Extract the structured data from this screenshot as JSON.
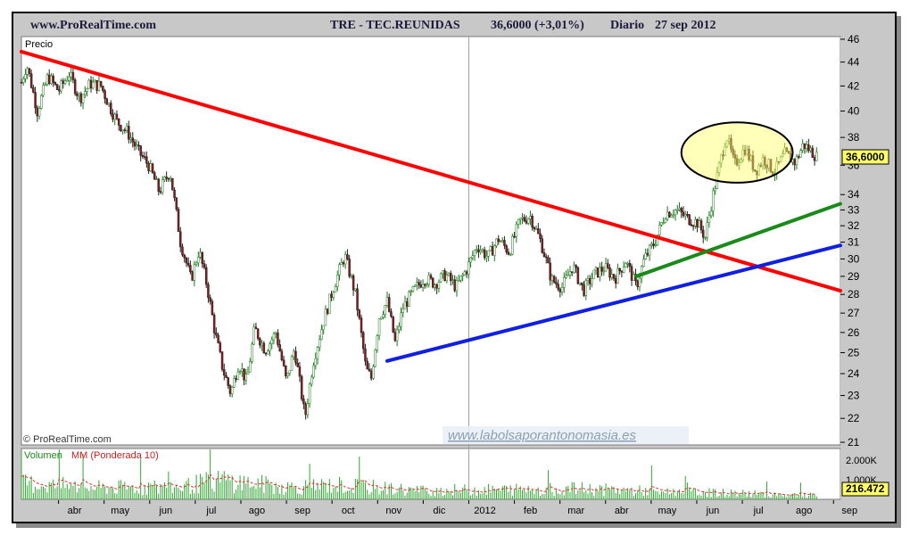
{
  "header": {
    "site": "www.ProRealTime.com",
    "ticker": "TRE - TEC.REUNIDAS",
    "price": "36,6000 (+3,01%)",
    "period": "Diario",
    "date": "27 sep 2012"
  },
  "chart_data": [
    {
      "type": "candlestick",
      "title": "Precio",
      "watermark": "www.labolsaporantonomasia.es",
      "credit": "© ProRealTime.com",
      "ylim": [
        21,
        46
      ],
      "y_ticks": [
        21,
        22,
        23,
        24,
        25,
        26,
        27,
        28,
        29,
        30,
        31,
        32,
        33,
        34,
        36,
        38,
        40,
        42,
        44,
        46
      ],
      "x_labels": [
        "abr",
        "may",
        "jun",
        "jul",
        "ago",
        "sep",
        "oct",
        "nov",
        "dic",
        "2012",
        "feb",
        "mar",
        "abr",
        "may",
        "jun",
        "jul",
        "ago",
        "sep"
      ],
      "last_price_label": "36,6000",
      "price_path": [
        {
          "t": 0,
          "v": 42.3
        },
        {
          "t": 4,
          "v": 43.8
        },
        {
          "t": 12,
          "v": 40.0
        },
        {
          "t": 20,
          "v": 42.8
        },
        {
          "t": 28,
          "v": 41.6
        },
        {
          "t": 36,
          "v": 43.0
        },
        {
          "t": 44,
          "v": 41.0
        },
        {
          "t": 52,
          "v": 42.2
        },
        {
          "t": 60,
          "v": 42.0
        },
        {
          "t": 66,
          "v": 40.5
        },
        {
          "t": 72,
          "v": 39.2
        },
        {
          "t": 80,
          "v": 38.4
        },
        {
          "t": 88,
          "v": 37.0
        },
        {
          "t": 96,
          "v": 36.0
        },
        {
          "t": 104,
          "v": 34.2
        },
        {
          "t": 112,
          "v": 35.6
        },
        {
          "t": 120,
          "v": 31.0
        },
        {
          "t": 128,
          "v": 28.8
        },
        {
          "t": 134,
          "v": 30.5
        },
        {
          "t": 140,
          "v": 28.5
        },
        {
          "t": 146,
          "v": 26.0
        },
        {
          "t": 152,
          "v": 24.2
        },
        {
          "t": 158,
          "v": 23.1
        },
        {
          "t": 164,
          "v": 24.5
        },
        {
          "t": 170,
          "v": 23.6
        },
        {
          "t": 176,
          "v": 26.2
        },
        {
          "t": 184,
          "v": 25.1
        },
        {
          "t": 192,
          "v": 26.0
        },
        {
          "t": 200,
          "v": 23.6
        },
        {
          "t": 206,
          "v": 25.2
        },
        {
          "t": 214,
          "v": 22.0
        },
        {
          "t": 220,
          "v": 24.5
        },
        {
          "t": 228,
          "v": 26.6
        },
        {
          "t": 236,
          "v": 28.5
        },
        {
          "t": 244,
          "v": 30.2
        },
        {
          "t": 252,
          "v": 28.0
        },
        {
          "t": 260,
          "v": 24.2
        },
        {
          "t": 264,
          "v": 23.8
        },
        {
          "t": 270,
          "v": 26.8
        },
        {
          "t": 276,
          "v": 27.6
        },
        {
          "t": 282,
          "v": 25.5
        },
        {
          "t": 288,
          "v": 27.3
        },
        {
          "t": 296,
          "v": 28.2
        },
        {
          "t": 304,
          "v": 28.9
        },
        {
          "t": 312,
          "v": 28.6
        },
        {
          "t": 320,
          "v": 29.1
        },
        {
          "t": 328,
          "v": 28.4
        },
        {
          "t": 336,
          "v": 29.4
        },
        {
          "t": 344,
          "v": 30.8
        },
        {
          "t": 352,
          "v": 30.1
        },
        {
          "t": 360,
          "v": 31.2
        },
        {
          "t": 368,
          "v": 30.4
        },
        {
          "t": 376,
          "v": 32.3
        },
        {
          "t": 384,
          "v": 32.6
        },
        {
          "t": 392,
          "v": 31.0
        },
        {
          "t": 400,
          "v": 28.8
        },
        {
          "t": 408,
          "v": 28.4
        },
        {
          "t": 416,
          "v": 29.6
        },
        {
          "t": 424,
          "v": 28.2
        },
        {
          "t": 432,
          "v": 29.1
        },
        {
          "t": 440,
          "v": 29.5
        },
        {
          "t": 448,
          "v": 28.9
        },
        {
          "t": 456,
          "v": 29.9
        },
        {
          "t": 464,
          "v": 28.4
        },
        {
          "t": 470,
          "v": 30.0
        },
        {
          "t": 478,
          "v": 31.0
        },
        {
          "t": 486,
          "v": 32.8
        },
        {
          "t": 494,
          "v": 33.0
        },
        {
          "t": 502,
          "v": 32.5
        },
        {
          "t": 510,
          "v": 32.2
        },
        {
          "t": 516,
          "v": 31.3
        },
        {
          "t": 522,
          "v": 34.0
        },
        {
          "t": 528,
          "v": 36.5
        },
        {
          "t": 532,
          "v": 38.2
        },
        {
          "t": 538,
          "v": 36.0
        },
        {
          "t": 546,
          "v": 37.2
        },
        {
          "t": 554,
          "v": 35.6
        },
        {
          "t": 560,
          "v": 36.5
        },
        {
          "t": 568,
          "v": 35.5
        },
        {
          "t": 576,
          "v": 36.8
        },
        {
          "t": 584,
          "v": 36.2
        },
        {
          "t": 590,
          "v": 37.5
        },
        {
          "t": 596,
          "v": 37.0
        },
        {
          "t": 600,
          "v": 36.6
        }
      ],
      "trendlines": [
        {
          "name": "resistencia",
          "color": "#ff0000",
          "points": [
            {
              "t": 0,
              "v": 44.9
            },
            {
              "t": 618,
              "v": 28.2
            }
          ]
        },
        {
          "name": "soporte",
          "color": "#1020e0",
          "points": [
            {
              "t": 276,
              "v": 24.6
            },
            {
              "t": 618,
              "v": 30.8
            }
          ]
        },
        {
          "name": "soporte-corto",
          "color": "#1a8a1a",
          "points": [
            {
              "t": 464,
              "v": 29.0
            },
            {
              "t": 618,
              "v": 33.4
            }
          ]
        }
      ],
      "highlight_ellipse": {
        "t_center": 540,
        "v_center": 36.9,
        "t_radius": 42,
        "v_radius": 2.1
      }
    },
    {
      "type": "bar",
      "title_volume": "Volumen",
      "title_avg": "MM (Ponderada 10)",
      "ylim": [
        0,
        2600
      ],
      "y_ticks": [
        "2.000K",
        "1.000K"
      ],
      "last_value_label": "216.472",
      "volume_profile": [
        {
          "t": 0,
          "v": 900
        },
        {
          "t": 60,
          "v": 650
        },
        {
          "t": 120,
          "v": 700
        },
        {
          "t": 150,
          "v": 1100
        },
        {
          "t": 200,
          "v": 700
        },
        {
          "t": 240,
          "v": 800
        },
        {
          "t": 300,
          "v": 500
        },
        {
          "t": 360,
          "v": 550
        },
        {
          "t": 420,
          "v": 600
        },
        {
          "t": 480,
          "v": 450
        },
        {
          "t": 540,
          "v": 350
        },
        {
          "t": 600,
          "v": 220
        }
      ],
      "colors": {
        "bar": "#2ea82e",
        "avg": "#e03030"
      }
    }
  ]
}
